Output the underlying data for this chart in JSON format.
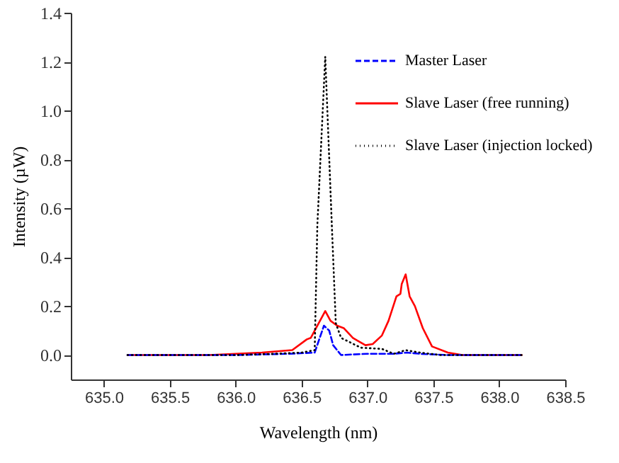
{
  "chart_data": {
    "type": "line",
    "xlabel": "Wavelength (nm)",
    "ylabel": "Intensity (µW)",
    "xlim": [
      634.75,
      638.5
    ],
    "ylim": [
      -0.1,
      1.4
    ],
    "xticks": [
      {
        "value": 635,
        "label": "635.0"
      },
      {
        "value": 635.5,
        "label": "635.5"
      },
      {
        "value": 636,
        "label": "636.0"
      },
      {
        "value": 636.5,
        "label": "636.5"
      },
      {
        "value": 637,
        "label": "637.0"
      },
      {
        "value": 637.5,
        "label": "637.5"
      },
      {
        "value": 638,
        "label": "638.0"
      },
      {
        "value": 638.5,
        "label": "638.5"
      }
    ],
    "yticks": [
      {
        "value": 0,
        "label": "0.0"
      },
      {
        "value": 0.2,
        "label": "0.2"
      },
      {
        "value": 0.4,
        "label": "0.4"
      },
      {
        "value": 0.6,
        "label": "0.6"
      },
      {
        "value": 0.8,
        "label": "0.8"
      },
      {
        "value": 1,
        "label": "1.0"
      },
      {
        "value": 1.2,
        "label": "1.2"
      },
      {
        "value": 1.4,
        "label": "1.4"
      }
    ],
    "grid": false,
    "legend": "top right",
    "marker": "none",
    "series": [
      {
        "name": "Master Laser",
        "color": "#0000ff",
        "line_style": "dashed",
        "x": [
          635.18,
          636.0,
          636.4,
          636.6,
          636.67,
          636.71,
          636.74,
          636.8,
          637.0,
          637.2,
          637.3,
          637.4,
          637.6,
          638.17
        ],
        "values": [
          0,
          0,
          0.005,
          0.01,
          0.12,
          0.1,
          0.04,
          0,
          0.005,
          0.005,
          0.01,
          0.005,
          0,
          0
        ]
      },
      {
        "name": "Slave Laser (free running)",
        "color": "#ff0000",
        "line_style": "solid",
        "x": [
          635.18,
          635.8,
          636.2,
          636.43,
          636.54,
          636.57,
          636.63,
          636.68,
          636.72,
          636.77,
          636.82,
          636.89,
          636.985,
          637.04,
          637.11,
          637.16,
          637.22,
          637.25,
          637.26,
          637.29,
          637.32,
          637.36,
          637.42,
          637.49,
          637.61,
          637.72,
          638.17
        ],
        "values": [
          0,
          0,
          0.01,
          0.02,
          0.064,
          0.07,
          0.13,
          0.18,
          0.14,
          0.12,
          0.11,
          0.07,
          0.04,
          0.045,
          0.08,
          0.14,
          0.24,
          0.25,
          0.29,
          0.33,
          0.24,
          0.2,
          0.11,
          0.035,
          0.01,
          0,
          0
        ]
      },
      {
        "name": "Slave Laser (injection locked)",
        "color": "#000000",
        "line_style": "dotted",
        "x": [
          635.18,
          636.0,
          636.3,
          636.5,
          636.6,
          636.62,
          636.68,
          636.73,
          636.76,
          636.8,
          636.95,
          637.11,
          637.2,
          637.29,
          637.4,
          637.55,
          638.17
        ],
        "values": [
          0,
          0,
          0.005,
          0.01,
          0.02,
          0.53,
          1.22,
          0.53,
          0.13,
          0.07,
          0.03,
          0.025,
          0.005,
          0.02,
          0.01,
          0,
          0
        ]
      }
    ]
  }
}
